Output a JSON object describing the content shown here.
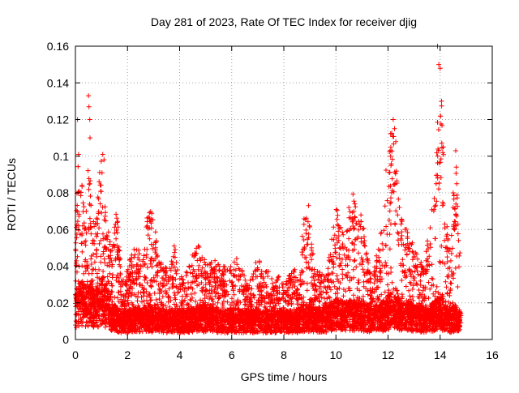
{
  "chart_data": {
    "type": "scatter",
    "title": "Day 281 of 2023, Rate Of TEC Index for receiver djig",
    "xlabel": "GPS time / hours",
    "ylabel": "ROTI / TECUs",
    "xlim": [
      0,
      16
    ],
    "ylim": [
      0,
      0.16
    ],
    "xticks": [
      "0",
      "2",
      "4",
      "6",
      "8",
      "10",
      "12",
      "14",
      "16"
    ],
    "yticks": [
      "0",
      "0.02",
      "0.04",
      "0.06",
      "0.08",
      "0.1",
      "0.12",
      "0.14",
      "0.16"
    ],
    "grid": true,
    "marker": "plus",
    "color": "#ff0000",
    "envelope": {
      "x": [
        0.0,
        0.1,
        0.2,
        0.3,
        0.4,
        0.5,
        0.6,
        0.7,
        0.8,
        0.9,
        1.0,
        1.1,
        1.2,
        1.3,
        1.4,
        1.5,
        1.6,
        1.7,
        1.8,
        2.0,
        2.2,
        2.4,
        2.6,
        2.8,
        3.0,
        3.2,
        3.4,
        3.6,
        3.8,
        4.0,
        4.2,
        4.4,
        4.6,
        4.8,
        5.0,
        5.2,
        5.4,
        5.6,
        5.8,
        6.0,
        6.2,
        6.4,
        6.6,
        6.8,
        7.0,
        7.2,
        7.4,
        7.6,
        7.8,
        8.0,
        8.2,
        8.4,
        8.6,
        8.8,
        9.0,
        9.2,
        9.4,
        9.6,
        9.8,
        10.0,
        10.2,
        10.4,
        10.6,
        10.8,
        11.0,
        11.2,
        11.4,
        11.6,
        11.8,
        12.0,
        12.2,
        12.4,
        12.6,
        12.8,
        13.0,
        13.2,
        13.4,
        13.6,
        13.8,
        14.0,
        14.2,
        14.4,
        14.6,
        14.8
      ],
      "max": [
        0.064,
        0.1,
        0.094,
        0.084,
        0.06,
        0.134,
        0.072,
        0.066,
        0.062,
        0.09,
        0.1,
        0.08,
        0.062,
        0.058,
        0.05,
        0.07,
        0.072,
        0.05,
        0.032,
        0.04,
        0.05,
        0.05,
        0.045,
        0.074,
        0.068,
        0.045,
        0.042,
        0.038,
        0.052,
        0.035,
        0.036,
        0.045,
        0.053,
        0.05,
        0.042,
        0.045,
        0.044,
        0.04,
        0.04,
        0.04,
        0.045,
        0.038,
        0.03,
        0.035,
        0.048,
        0.035,
        0.04,
        0.03,
        0.035,
        0.03,
        0.035,
        0.038,
        0.04,
        0.073,
        0.062,
        0.038,
        0.04,
        0.035,
        0.05,
        0.08,
        0.06,
        0.06,
        0.085,
        0.07,
        0.07,
        0.045,
        0.035,
        0.05,
        0.07,
        0.11,
        0.122,
        0.08,
        0.06,
        0.065,
        0.05,
        0.045,
        0.04,
        0.066,
        0.085,
        0.158,
        0.07,
        0.048,
        0.1,
        0.04
      ],
      "base": [
        0.016,
        0.02,
        0.022,
        0.02,
        0.018,
        0.02,
        0.02,
        0.018,
        0.018,
        0.02,
        0.022,
        0.02,
        0.018,
        0.016,
        0.014,
        0.012,
        0.012,
        0.01,
        0.01,
        0.01,
        0.011,
        0.011,
        0.011,
        0.012,
        0.011,
        0.011,
        0.01,
        0.01,
        0.011,
        0.01,
        0.01,
        0.011,
        0.012,
        0.012,
        0.011,
        0.011,
        0.011,
        0.01,
        0.01,
        0.011,
        0.011,
        0.01,
        0.01,
        0.01,
        0.011,
        0.01,
        0.01,
        0.01,
        0.01,
        0.01,
        0.01,
        0.01,
        0.011,
        0.012,
        0.012,
        0.011,
        0.011,
        0.011,
        0.012,
        0.014,
        0.013,
        0.013,
        0.014,
        0.013,
        0.013,
        0.012,
        0.011,
        0.012,
        0.013,
        0.016,
        0.016,
        0.014,
        0.013,
        0.013,
        0.012,
        0.012,
        0.011,
        0.012,
        0.013,
        0.016,
        0.012,
        0.011,
        0.012,
        0.01
      ]
    },
    "outliers": {
      "x": [
        0.08,
        0.12,
        0.5,
        0.52,
        0.55,
        0.56,
        1.05,
        1.1,
        8.95,
        8.98,
        12.2,
        12.25,
        12.3,
        12.1,
        13.9,
        13.95,
        14.0,
        14.05,
        14.1,
        13.85,
        14.5,
        14.6,
        14.62,
        14.55
      ],
      "y": [
        0.12,
        0.101,
        0.133,
        0.127,
        0.12,
        0.11,
        0.101,
        0.098,
        0.073,
        0.062,
        0.12,
        0.115,
        0.108,
        0.1,
        0.16,
        0.15,
        0.148,
        0.13,
        0.102,
        0.085,
        0.08,
        0.103,
        0.094,
        0.06
      ]
    }
  }
}
